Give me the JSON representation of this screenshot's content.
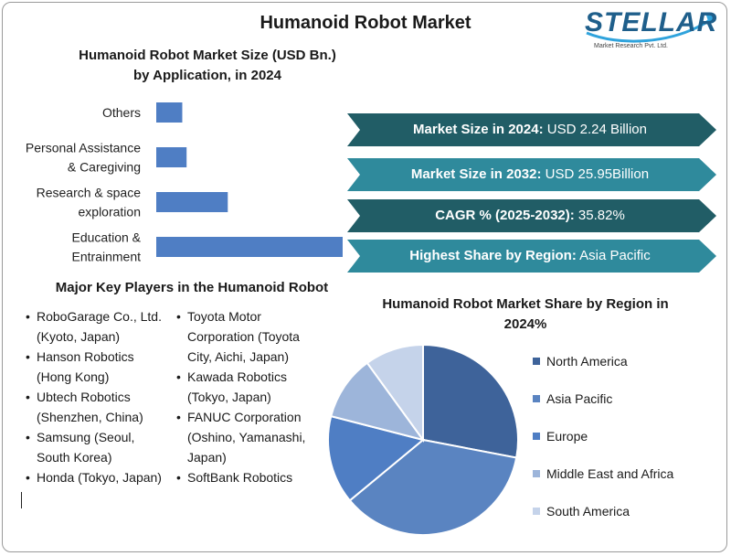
{
  "title": "Humanoid Robot Market",
  "logo": {
    "name": "STELLAR",
    "tagline": "Market Research Pvt. Ltd."
  },
  "chart_data": [
    {
      "type": "bar",
      "orientation": "horizontal",
      "title": "Humanoid Robot Market Size (USD Bn.) by Application, in 2024",
      "title_lines": [
        "Humanoid Robot Market Size (USD Bn.)",
        "by Application, in 2024"
      ],
      "categories": [
        {
          "lines": [
            "Others"
          ]
        },
        {
          "lines": [
            "Personal Assistance",
            "& Caregiving"
          ]
        },
        {
          "lines": [
            "Research & space",
            "exploration"
          ]
        },
        {
          "lines": [
            "Education &",
            "Entrainment"
          ]
        }
      ],
      "values": [
        0.12,
        0.14,
        0.33,
        0.86
      ],
      "color": "#4f7ec4",
      "axes_shown": false,
      "grid": false
    },
    {
      "type": "pie",
      "title": "Humanoid Robot Market Share by Region in 2024%",
      "title_lines": [
        "Humanoid Robot Market Share by Region in",
        "2024%"
      ],
      "labels": [
        "North America",
        "Asia Pacific",
        "Europe",
        "Middle East and Africa",
        "South America"
      ],
      "values": [
        28,
        36,
        15,
        11,
        10
      ],
      "colors": [
        "#3e639a",
        "#5a84c1",
        "#4f7ec4",
        "#9db5da",
        "#c5d3ea"
      ],
      "legend_position": "right"
    }
  ],
  "key_points": [
    {
      "label": "Market Size in 2024:",
      "value": " USD 2.24 Billion",
      "color": "#215d66"
    },
    {
      "label": "Market Size in 2032:",
      "value": " USD 25.95Billion",
      "color": "#2f8a9c"
    },
    {
      "label": "CAGR % (2025-2032):",
      "value": " 35.82%",
      "color": "#215d66"
    },
    {
      "label": "Highest Share by Region:",
      "value": " Asia Pacific",
      "color": "#2f8a9c"
    }
  ],
  "players": {
    "title": "Major Key Players in the Humanoid Robot",
    "column1": [
      "RoboGarage Co., Ltd. (Kyoto, Japan)",
      "Hanson Robotics (Hong Kong)",
      "Ubtech Robotics (Shenzhen, China)",
      "Samsung (Seoul, South Korea)",
      "Honda (Tokyo, Japan)"
    ],
    "column2": [
      "Toyota Motor Corporation (Toyota City, Aichi, Japan)",
      "Kawada Robotics (Tokyo, Japan)",
      "FANUC Corporation (Oshino, Yamanashi, Japan)",
      "SoftBank Robotics"
    ]
  }
}
